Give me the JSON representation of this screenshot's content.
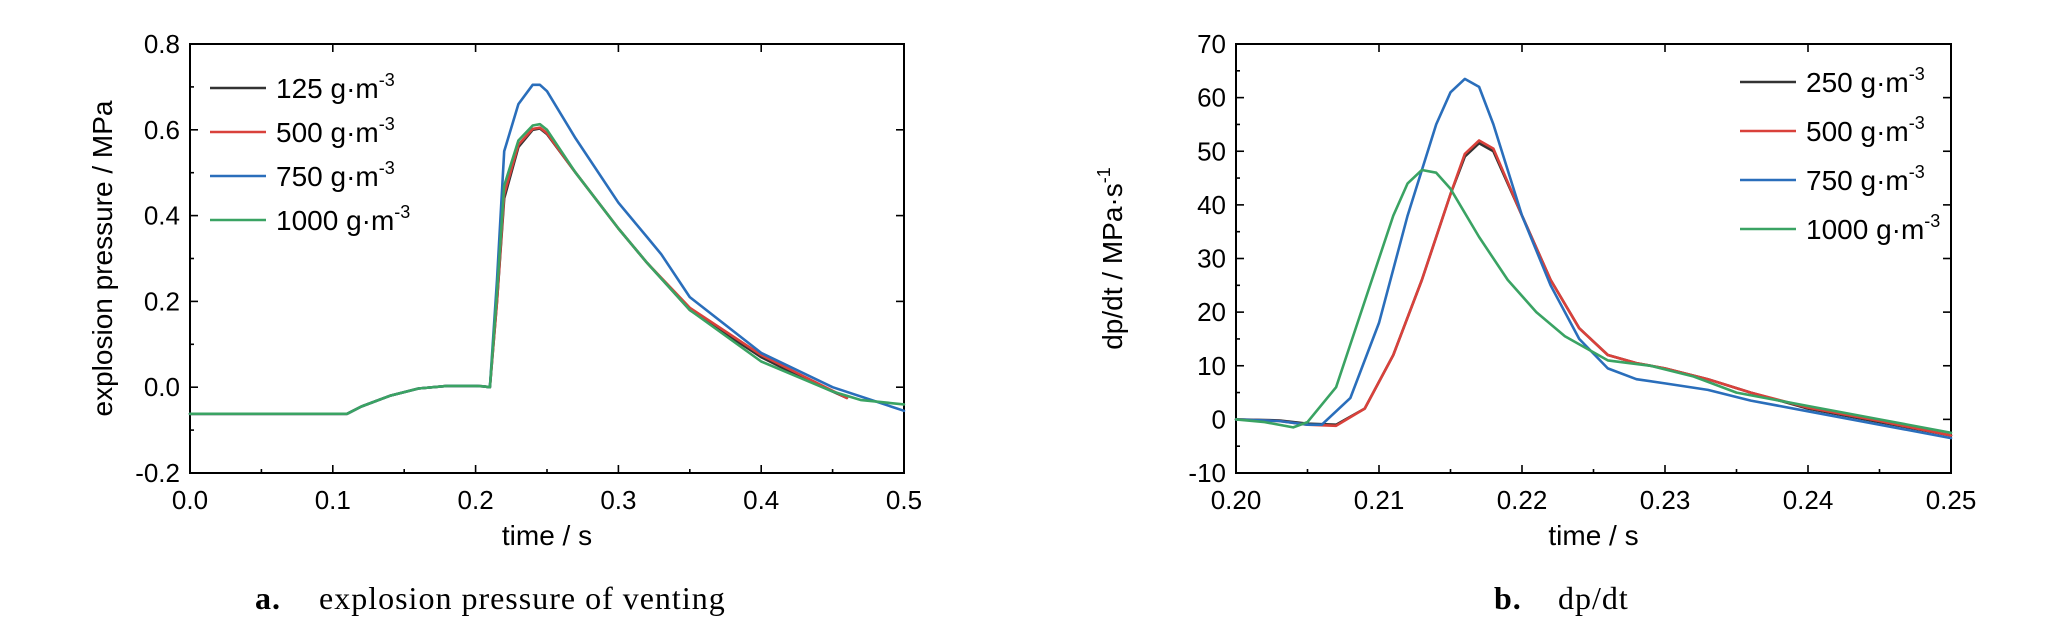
{
  "chart_data": [
    {
      "type": "line",
      "panel": "a",
      "caption_letter": "a.",
      "caption_text": "explosion pressure of venting",
      "xlabel": "time / s",
      "ylabel": "explosion pressure / MPa",
      "xlim": [
        0.0,
        0.5
      ],
      "ylim": [
        -0.2,
        0.8
      ],
      "xticks": [
        "0.0",
        "0.1",
        "0.2",
        "0.3",
        "0.4",
        "0.5"
      ],
      "yticks": [
        "-0.2",
        "0.0",
        "0.2",
        "0.4",
        "0.6",
        "0.8"
      ],
      "legend_position": "top-left",
      "series": [
        {
          "name": "125 g·m",
          "sup": "-3",
          "color": "#333333",
          "x": [
            0.0,
            0.11,
            0.12,
            0.14,
            0.16,
            0.18,
            0.2,
            0.205,
            0.21,
            0.215,
            0.22,
            0.23,
            0.24,
            0.245,
            0.25,
            0.27,
            0.3,
            0.32,
            0.35,
            0.4,
            0.43,
            0.46
          ],
          "y": [
            -0.062,
            -0.062,
            -0.045,
            -0.02,
            -0.003,
            0.003,
            0.003,
            0.002,
            0.0,
            0.2,
            0.44,
            0.56,
            0.6,
            0.603,
            0.59,
            0.5,
            0.37,
            0.29,
            0.18,
            0.07,
            0.02,
            -0.025
          ]
        },
        {
          "name": "500 g·m",
          "sup": "-3",
          "color": "#d9413b",
          "x": [
            0.0,
            0.11,
            0.12,
            0.14,
            0.16,
            0.18,
            0.2,
            0.205,
            0.21,
            0.215,
            0.22,
            0.23,
            0.24,
            0.245,
            0.25,
            0.27,
            0.3,
            0.32,
            0.35,
            0.4,
            0.43,
            0.46
          ],
          "y": [
            -0.062,
            -0.062,
            -0.045,
            -0.02,
            -0.003,
            0.003,
            0.003,
            0.002,
            0.0,
            0.2,
            0.45,
            0.565,
            0.602,
            0.605,
            0.592,
            0.5,
            0.37,
            0.29,
            0.185,
            0.075,
            0.025,
            -0.025
          ]
        },
        {
          "name": "750 g·m",
          "sup": "-3",
          "color": "#2a6ebb",
          "x": [
            0.0,
            0.11,
            0.12,
            0.14,
            0.16,
            0.18,
            0.2,
            0.205,
            0.21,
            0.215,
            0.22,
            0.23,
            0.24,
            0.245,
            0.25,
            0.27,
            0.3,
            0.32,
            0.33,
            0.35,
            0.4,
            0.45,
            0.5
          ],
          "y": [
            -0.062,
            -0.062,
            -0.045,
            -0.02,
            -0.003,
            0.003,
            0.003,
            0.002,
            0.0,
            0.25,
            0.55,
            0.66,
            0.705,
            0.705,
            0.69,
            0.58,
            0.43,
            0.35,
            0.31,
            0.21,
            0.08,
            0.0,
            -0.055
          ]
        },
        {
          "name": "1000 g·m",
          "sup": "-3",
          "color": "#3aa363",
          "x": [
            0.0,
            0.11,
            0.12,
            0.14,
            0.16,
            0.18,
            0.2,
            0.205,
            0.21,
            0.215,
            0.22,
            0.23,
            0.24,
            0.245,
            0.25,
            0.27,
            0.3,
            0.32,
            0.35,
            0.4,
            0.45,
            0.47,
            0.5
          ],
          "y": [
            -0.062,
            -0.062,
            -0.045,
            -0.02,
            -0.003,
            0.003,
            0.003,
            0.002,
            0.0,
            0.22,
            0.47,
            0.575,
            0.61,
            0.613,
            0.6,
            0.5,
            0.37,
            0.29,
            0.18,
            0.06,
            -0.01,
            -0.03,
            -0.04
          ]
        }
      ]
    },
    {
      "type": "line",
      "panel": "b",
      "caption_letter": "b.",
      "caption_text": "dp/dt",
      "xlabel": "time / s",
      "ylabel": "dp/dt / MPa·s",
      "ylabel_sup": "-1",
      "xlim": [
        0.2,
        0.25
      ],
      "ylim": [
        -10,
        70
      ],
      "xticks": [
        "0.20",
        "0.21",
        "0.22",
        "0.23",
        "0.24",
        "0.25"
      ],
      "yticks": [
        "-10",
        "0",
        "10",
        "20",
        "30",
        "40",
        "50",
        "60",
        "70"
      ],
      "legend_position": "top-right",
      "series": [
        {
          "name": "250 g·m",
          "sup": "-3",
          "color": "#333333",
          "x": [
            0.2,
            0.203,
            0.205,
            0.207,
            0.209,
            0.211,
            0.213,
            0.215,
            0.216,
            0.217,
            0.218,
            0.22,
            0.222,
            0.224,
            0.226,
            0.228,
            0.23,
            0.233,
            0.236,
            0.24,
            0.245,
            0.25
          ],
          "y": [
            0,
            -0.2,
            -0.8,
            -1.0,
            2.0,
            12,
            26,
            42,
            49,
            51.5,
            50,
            38,
            26,
            17,
            12,
            10.5,
            9.5,
            7.5,
            5,
            2,
            -0.5,
            -3
          ]
        },
        {
          "name": "500 g·m",
          "sup": "-3",
          "color": "#d9413b",
          "x": [
            0.2,
            0.203,
            0.205,
            0.207,
            0.209,
            0.211,
            0.213,
            0.215,
            0.216,
            0.217,
            0.218,
            0.22,
            0.222,
            0.224,
            0.226,
            0.228,
            0.23,
            0.233,
            0.236,
            0.24,
            0.245,
            0.25
          ],
          "y": [
            0,
            -0.3,
            -1.0,
            -1.2,
            2.0,
            12,
            26,
            42,
            49.5,
            52,
            50.5,
            38,
            26,
            17,
            12,
            10.5,
            9.5,
            7.5,
            5,
            2.2,
            -0.3,
            -3
          ]
        },
        {
          "name": "750 g·m",
          "sup": "-3",
          "color": "#2a6ebb",
          "x": [
            0.2,
            0.203,
            0.205,
            0.206,
            0.208,
            0.21,
            0.212,
            0.214,
            0.215,
            0.216,
            0.217,
            0.218,
            0.22,
            0.222,
            0.224,
            0.226,
            0.228,
            0.23,
            0.233,
            0.236,
            0.24,
            0.245,
            0.25
          ],
          "y": [
            0,
            -0.3,
            -1.0,
            -1.0,
            4,
            18,
            38,
            55,
            61,
            63.5,
            62,
            55,
            38,
            25,
            15,
            9.5,
            7.5,
            6.7,
            5.5,
            3.5,
            1.5,
            -1,
            -3.5
          ]
        },
        {
          "name": "1000 g·m",
          "sup": "-3",
          "color": "#3aa363",
          "x": [
            0.2,
            0.202,
            0.204,
            0.205,
            0.207,
            0.209,
            0.211,
            0.212,
            0.213,
            0.214,
            0.215,
            0.217,
            0.219,
            0.221,
            0.223,
            0.226,
            0.229,
            0.232,
            0.235,
            0.24,
            0.245,
            0.25
          ],
          "y": [
            0,
            -0.5,
            -1.5,
            -0.5,
            6,
            22,
            38,
            44,
            46.5,
            46,
            43,
            34,
            26,
            20,
            15.5,
            11,
            10,
            8,
            5,
            2.5,
            0,
            -2.5
          ]
        }
      ]
    }
  ]
}
